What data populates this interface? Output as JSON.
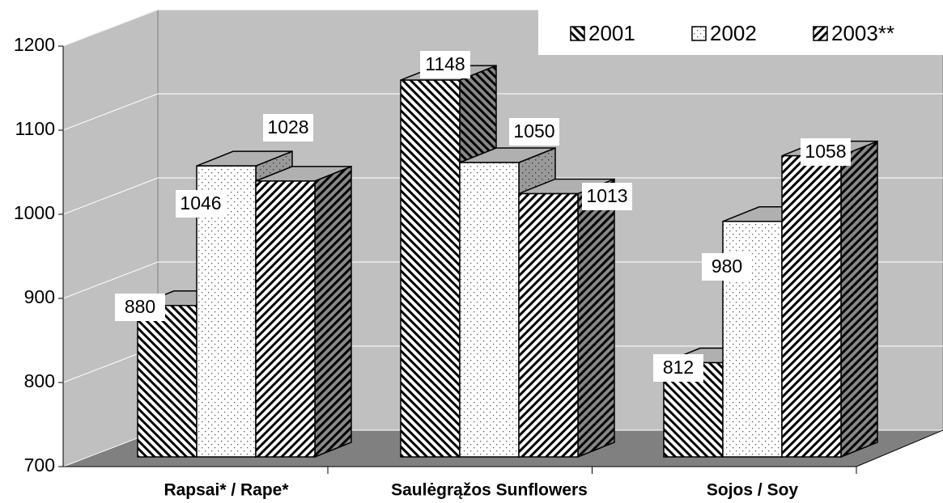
{
  "chart_data": {
    "type": "bar3d",
    "categories": [
      "Rapsai* / Rape*",
      "Saulėgrąžos Sunflowers",
      "Sojos / Soy"
    ],
    "series": [
      {
        "name": "2001",
        "pattern": "back-diagonal",
        "values": [
          880,
          1148,
          812
        ]
      },
      {
        "name": "2002",
        "pattern": "dots",
        "values": [
          1046,
          1050,
          980
        ]
      },
      {
        "name": "2003**",
        "pattern": "forward-diagonal",
        "values": [
          1028,
          1013,
          1058
        ]
      }
    ],
    "ylim": [
      700,
      1200
    ],
    "yticks": [
      700,
      800,
      900,
      1000,
      1100,
      1200
    ],
    "grid": true,
    "legend": "top-right"
  }
}
